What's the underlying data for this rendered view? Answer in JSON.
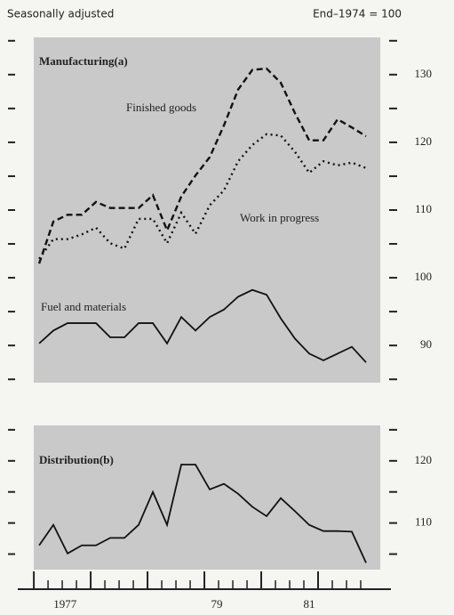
{
  "header": {
    "left": "Seasonally adjusted",
    "right": "End–1974 = 100"
  },
  "chart_data": [
    {
      "type": "line",
      "panel_color": "#c9c9c9",
      "x": [
        0,
        1,
        2,
        3,
        4,
        5,
        6,
        7,
        8,
        9,
        10,
        11,
        12,
        13,
        14,
        15,
        16,
        17,
        18,
        19,
        20,
        21,
        22,
        23
      ],
      "xlim": [
        -0.38,
        24
      ],
      "ylim": [
        84.5,
        135.5
      ],
      "yticks": [
        90,
        100,
        110,
        120,
        130
      ],
      "minor_yticks": [
        85,
        90,
        95,
        100,
        105,
        110,
        115,
        120,
        125,
        130,
        135
      ],
      "annotations": [
        "Manufacturing(a)",
        "Finished goods",
        "Work in progress",
        "Fuel and materials"
      ],
      "series": [
        {
          "name": "Finished goods",
          "color": "#111",
          "style": "dashed",
          "values": [
            102.1,
            108.3,
            109.3,
            109.3,
            111.2,
            110.3,
            110.3,
            110.3,
            112.2,
            107.0,
            112.0,
            115.1,
            117.8,
            122.5,
            127.8,
            130.7,
            130.9,
            128.8,
            124.3,
            120.3,
            120.3,
            123.4,
            122.2,
            120.9
          ]
        },
        {
          "name": "Work in progress",
          "color": "#111",
          "style": "dotted",
          "values": [
            102.8,
            105.7,
            105.7,
            106.4,
            107.4,
            105.1,
            104.3,
            108.7,
            108.7,
            105.1,
            109.6,
            106.5,
            110.7,
            112.9,
            117.2,
            119.6,
            121.2,
            121.0,
            118.6,
            115.5,
            117.2,
            116.6,
            117.0,
            116.2
          ]
        },
        {
          "name": "Fuel and materials",
          "color": "#111",
          "style": "solid",
          "values": [
            90.3,
            92.2,
            93.3,
            93.3,
            93.3,
            91.2,
            91.2,
            93.3,
            93.3,
            90.3,
            94.2,
            92.2,
            94.2,
            95.3,
            97.2,
            98.2,
            97.5,
            94.0,
            91.0,
            88.8,
            87.8,
            88.8,
            89.8,
            87.5
          ]
        }
      ]
    },
    {
      "type": "line",
      "panel_color": "#c9c9c9",
      "x": [
        0,
        1,
        2,
        3,
        4,
        5,
        6,
        7,
        8,
        9,
        10,
        11,
        12,
        13,
        14,
        15,
        16,
        17,
        18,
        19,
        20,
        21,
        22,
        23
      ],
      "xlim": [
        -0.38,
        24
      ],
      "xticks": [
        {
          "value": 1.82,
          "label": "1977"
        },
        {
          "value": 12.5,
          "label": "79"
        },
        {
          "value": 19,
          "label": "81"
        }
      ],
      "ylim": [
        102.5,
        125.7
      ],
      "yticks": [
        110,
        120
      ],
      "minor_yticks": [
        105,
        110,
        115,
        120,
        125
      ],
      "annotations": [
        "Distribution(b)"
      ],
      "series": [
        {
          "name": "Distribution",
          "color": "#111",
          "style": "solid",
          "values": [
            106.4,
            109.7,
            105.1,
            106.4,
            106.4,
            107.6,
            107.6,
            109.7,
            115.0,
            109.7,
            119.4,
            119.4,
            115.4,
            116.3,
            114.7,
            112.6,
            111.1,
            114.0,
            111.9,
            109.7,
            108.7,
            108.7,
            108.6,
            103.6
          ]
        }
      ]
    }
  ]
}
